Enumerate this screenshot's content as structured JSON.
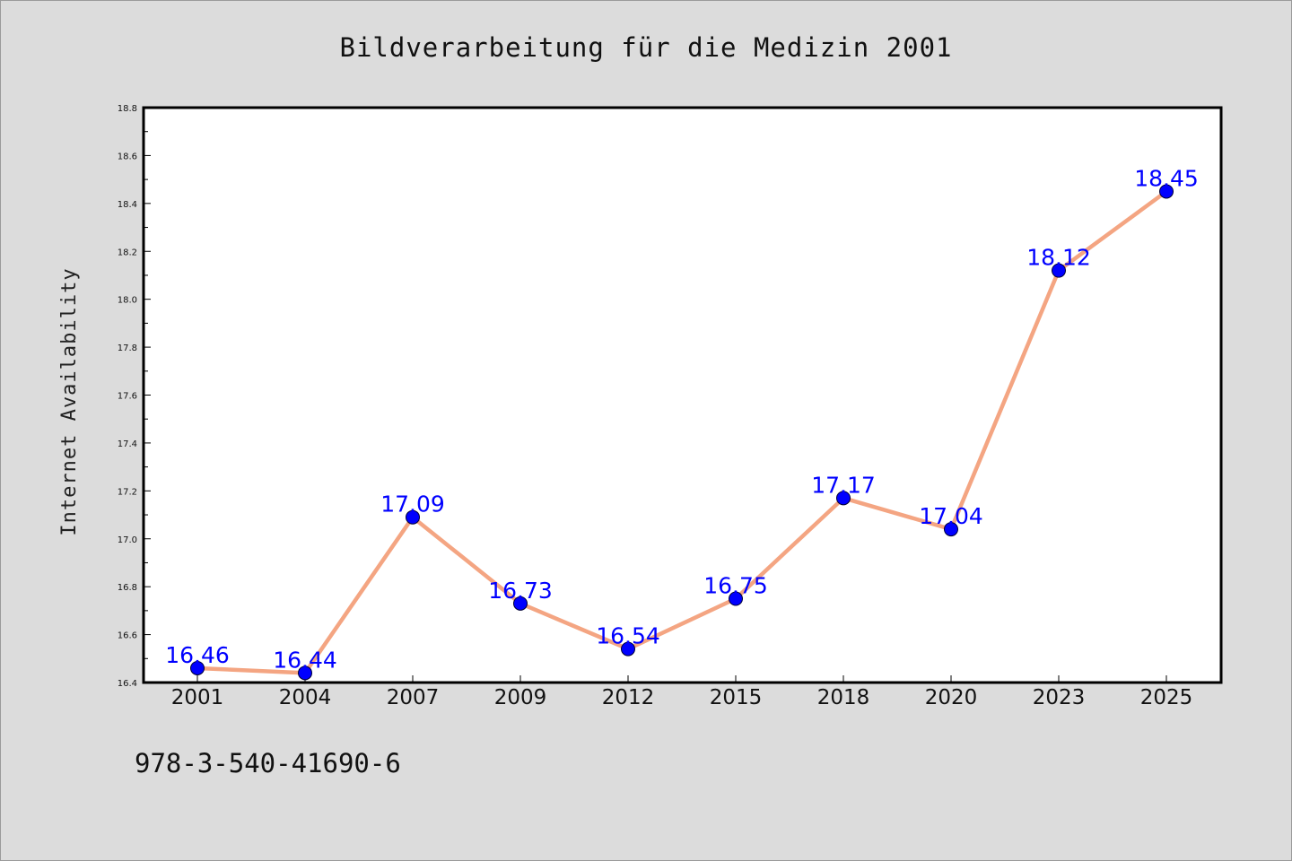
{
  "chart_data": {
    "type": "line",
    "title": "Bildverarbeitung für die Medizin 2001",
    "ylabel": "Internet Availability",
    "xlabel": "",
    "categories": [
      "2001",
      "2004",
      "2007",
      "2009",
      "2012",
      "2015",
      "2018",
      "2020",
      "2023",
      "2025"
    ],
    "values": [
      16.46,
      16.44,
      17.09,
      16.73,
      16.54,
      16.75,
      17.17,
      17.04,
      18.12,
      18.45
    ],
    "data_labels": [
      "16.46",
      "16.44",
      "17.09",
      "16.73",
      "16.54",
      "16.75",
      "17.17",
      "17.04",
      "18.12",
      "18.45"
    ],
    "ylim": [
      16.4,
      18.8
    ],
    "yticks": [
      "16.4",
      "16.6",
      "16.8",
      "17.0",
      "17.2",
      "17.4",
      "17.6",
      "17.8",
      "18.0",
      "18.2",
      "18.4",
      "18.6",
      "18.8"
    ],
    "grid": false,
    "legend": "none",
    "colors": {
      "line": "#f4a582",
      "marker": "#0000ff",
      "marker_edge": "#000033",
      "label": "#0000ff",
      "background": "#dcdcdc",
      "plot_background": "#ffffff"
    }
  },
  "footnote": "978-3-540-41690-6"
}
